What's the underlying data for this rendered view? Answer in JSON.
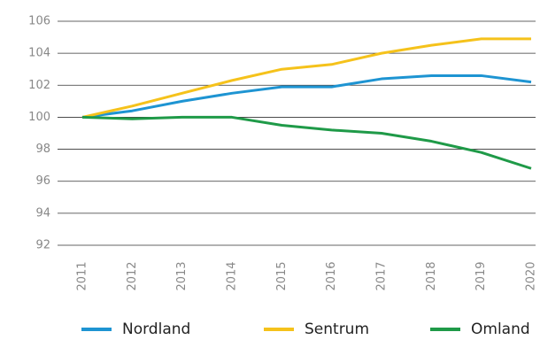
{
  "chart_data": {
    "type": "line",
    "categories": [
      "2011",
      "2012",
      "2013",
      "2014",
      "2015",
      "2016",
      "2017",
      "2018",
      "2019",
      "2020"
    ],
    "series": [
      {
        "name": "Nordland",
        "color": "#1e94d2",
        "values": [
          100,
          100.4,
          101.0,
          101.5,
          101.9,
          101.9,
          102.4,
          102.6,
          102.6,
          102.2
        ]
      },
      {
        "name": "Sentrum",
        "color": "#f5c21b",
        "values": [
          100,
          100.7,
          101.5,
          102.3,
          103.0,
          103.3,
          104.0,
          104.5,
          104.9,
          104.9
        ]
      },
      {
        "name": "Omland",
        "color": "#1f9a48",
        "values": [
          100,
          99.9,
          100.0,
          100.0,
          99.5,
          99.2,
          99.0,
          98.5,
          97.8,
          96.8
        ]
      }
    ],
    "ylim": [
      92,
      106
    ],
    "yticks": [
      92,
      94,
      96,
      98,
      100,
      102,
      104,
      106
    ],
    "grid": true
  }
}
